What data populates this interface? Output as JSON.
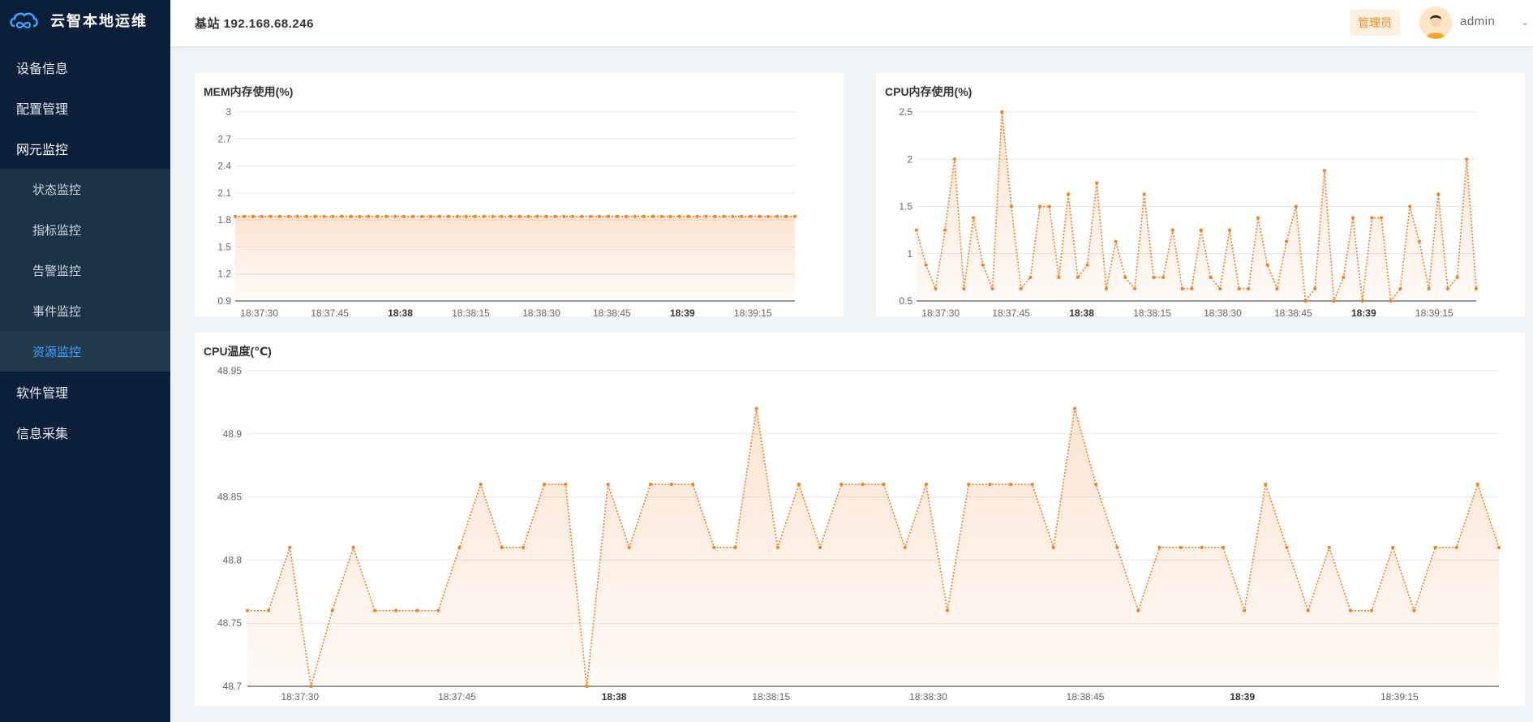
{
  "brand": {
    "name": "云智本地运维",
    "logo_icon": "cloud-infinity-logo-icon"
  },
  "sidebar": {
    "items": [
      {
        "label": "设备信息"
      },
      {
        "label": "配置管理"
      },
      {
        "label": "网元监控",
        "expanded": true
      },
      {
        "label": "软件管理"
      },
      {
        "label": "信息采集"
      }
    ],
    "submenu": [
      {
        "label": "状态监控"
      },
      {
        "label": "指标监控"
      },
      {
        "label": "告警监控"
      },
      {
        "label": "事件监控"
      },
      {
        "label": "资源监控",
        "active": true
      }
    ]
  },
  "header": {
    "station": "基站 192.168.68.246",
    "role": "管理员",
    "username": "admin",
    "avatar_icon": "user-avatar-icon",
    "caret_icon": "chevron-down-icon"
  },
  "colors": {
    "accent": "#f08c1e",
    "series": "#f47d20",
    "sidebar_bg": "#0b2038",
    "active_text": "#3aa3ff"
  },
  "chart_data": [
    {
      "id": "mem",
      "type": "area",
      "title": "MEM内存使用(%)",
      "xlabels": [
        "18:37:30",
        "18:37:45",
        "18:38",
        "18:38:15",
        "18:38:30",
        "18:38:45",
        "18:39",
        "18:39:15"
      ],
      "bold_xlabels": [
        "18:38",
        "18:39"
      ],
      "ylim": [
        0.9,
        3
      ],
      "yticks": [
        "0.9",
        "1.2",
        "1.5",
        "1.8",
        "2.1",
        "2.4",
        "2.7",
        "3"
      ],
      "points_count": 64,
      "values": [
        1.84,
        1.84,
        1.84,
        1.84,
        1.84,
        1.84,
        1.84,
        1.84,
        1.84,
        1.84,
        1.84,
        1.84,
        1.84,
        1.84,
        1.84,
        1.84,
        1.84,
        1.84,
        1.84,
        1.84,
        1.84,
        1.84,
        1.84,
        1.84,
        1.84,
        1.84,
        1.84,
        1.84,
        1.84,
        1.84,
        1.84,
        1.84,
        1.84,
        1.84,
        1.84,
        1.84,
        1.84,
        1.84,
        1.84,
        1.84,
        1.84,
        1.84,
        1.84,
        1.84,
        1.84,
        1.84,
        1.84,
        1.84,
        1.84,
        1.84,
        1.84,
        1.84,
        1.84,
        1.84,
        1.84,
        1.84,
        1.84,
        1.84,
        1.84,
        1.84,
        1.84,
        1.84,
        1.84,
        1.84
      ],
      "grid": true
    },
    {
      "id": "cpu",
      "type": "area",
      "title": "CPU内存使用(%)",
      "xlabels": [
        "18:37:30",
        "18:37:45",
        "18:38",
        "18:38:15",
        "18:38:30",
        "18:38:45",
        "18:39",
        "18:39:15"
      ],
      "bold_xlabels": [
        "18:38",
        "18:39"
      ],
      "ylim": [
        0.5,
        2.5
      ],
      "yticks": [
        "0.5",
        "1",
        "1.5",
        "2",
        "2.5"
      ],
      "values": [
        1.25,
        0.88,
        0.63,
        1.25,
        2.0,
        0.63,
        1.38,
        0.88,
        0.63,
        2.5,
        1.5,
        0.63,
        0.75,
        1.5,
        1.5,
        0.75,
        1.63,
        0.75,
        0.88,
        1.75,
        0.63,
        1.13,
        0.75,
        0.63,
        1.63,
        0.75,
        0.75,
        1.25,
        0.63,
        0.63,
        1.25,
        0.75,
        0.63,
        1.25,
        0.63,
        0.63,
        1.38,
        0.88,
        0.63,
        1.13,
        1.5,
        0.5,
        0.63,
        1.88,
        0.5,
        0.75,
        1.38,
        0.5,
        1.38,
        1.38,
        0.5,
        0.63,
        1.5,
        1.13,
        0.63,
        1.63,
        0.63,
        0.75,
        2.0,
        0.63
      ],
      "grid": true
    },
    {
      "id": "temp",
      "type": "area",
      "title": "CPU温度(℃)",
      "xlabels": [
        "18:37:30",
        "18:37:45",
        "18:38",
        "18:38:15",
        "18:38:30",
        "18:38:45",
        "18:39",
        "18:39:15"
      ],
      "bold_xlabels": [
        "18:38",
        "18:39"
      ],
      "ylim": [
        48.7,
        48.95
      ],
      "yticks": [
        "48.7",
        "48.75",
        "48.8",
        "48.85",
        "48.9",
        "48.95"
      ],
      "values": [
        48.76,
        48.76,
        48.81,
        48.7,
        48.76,
        48.81,
        48.76,
        48.76,
        48.76,
        48.76,
        48.81,
        48.86,
        48.81,
        48.81,
        48.86,
        48.86,
        48.7,
        48.86,
        48.81,
        48.86,
        48.86,
        48.86,
        48.81,
        48.81,
        48.92,
        48.81,
        48.86,
        48.81,
        48.86,
        48.86,
        48.86,
        48.81,
        48.86,
        48.76,
        48.86,
        48.86,
        48.86,
        48.86,
        48.81,
        48.92,
        48.86,
        48.81,
        48.76,
        48.81,
        48.81,
        48.81,
        48.81,
        48.76,
        48.86,
        48.81,
        48.76,
        48.81,
        48.76,
        48.76,
        48.81,
        48.76,
        48.81,
        48.81,
        48.86,
        48.81
      ],
      "grid": true
    }
  ]
}
